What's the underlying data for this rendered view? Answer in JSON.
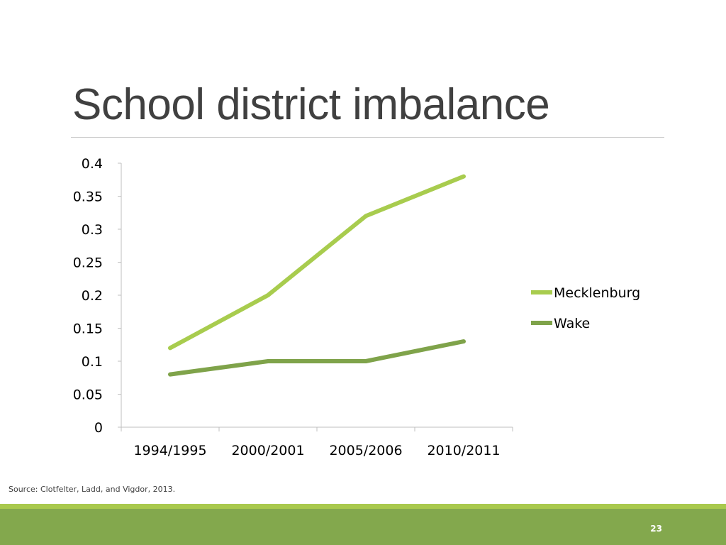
{
  "slide": {
    "title": "School district imbalance",
    "source": "Source: Clotfelter, Ladd, and Vigdor, 2013.",
    "page_number": "23"
  },
  "colors": {
    "mecklenburg": "#a8cc4e",
    "wake": "#7fa34a",
    "footer_light": "#a9c94d",
    "footer_dark": "#83a84d"
  },
  "chart_data": {
    "type": "line",
    "categories": [
      "1994/1995",
      "2000/2001",
      "2005/2006",
      "2010/2011"
    ],
    "series": [
      {
        "name": "Mecklenburg",
        "values": [
          0.12,
          0.2,
          0.32,
          0.38
        ]
      },
      {
        "name": "Wake",
        "values": [
          0.08,
          0.1,
          0.1,
          0.13
        ]
      }
    ],
    "yticks": [
      "0",
      "0.05",
      "0.1",
      "0.15",
      "0.2",
      "0.25",
      "0.3",
      "0.35",
      "0.4"
    ],
    "ylim": [
      0,
      0.4
    ],
    "grid": false,
    "legend_position": "right"
  }
}
